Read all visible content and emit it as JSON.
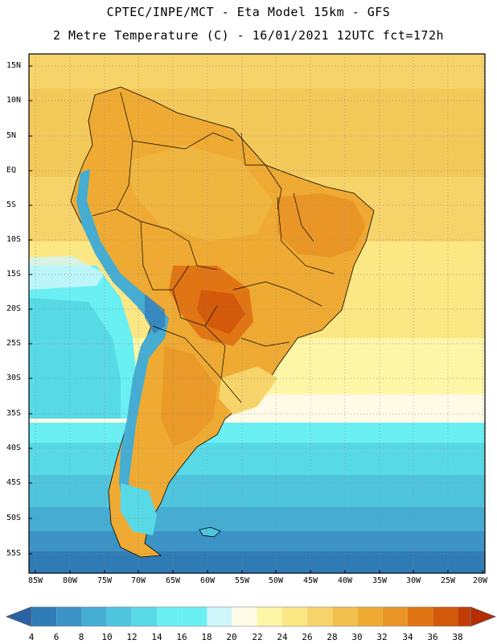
{
  "header": {
    "line1": "CPTEC/INPE/MCT -  Eta Model 15km - GFS",
    "line2": "2 Metre Temperature (C) - 16/01/2021 12UTC fct=172h"
  },
  "axes": {
    "lat_labels": [
      "15N",
      "10N",
      "5N",
      "EQ",
      "5S",
      "10S",
      "15S",
      "20S",
      "25S",
      "30S",
      "35S",
      "40S",
      "45S",
      "50S",
      "55S"
    ],
    "lon_labels": [
      "85W",
      "80W",
      "75W",
      "70W",
      "65W",
      "60W",
      "55W",
      "50W",
      "45W",
      "40W",
      "35W",
      "30W",
      "25W",
      "20W"
    ]
  },
  "colorbar": {
    "labels": [
      "4",
      "6",
      "8",
      "10",
      "12",
      "14",
      "16",
      "18",
      "20",
      "22",
      "24",
      "26",
      "28",
      "30",
      "32",
      "34",
      "36",
      "38"
    ],
    "colors": [
      "#2a62a6",
      "#2f7bb6",
      "#3b93c6",
      "#45acd2",
      "#4ec5dc",
      "#58d9e6",
      "#6aeff2",
      "#cff6fb",
      "#fffbe6",
      "#fdf6a6",
      "#fbe784",
      "#f7d46a",
      "#f1c04c",
      "#eeaa32",
      "#e99626",
      "#e17514",
      "#d25a0a",
      "#c23d05",
      "#b52e02"
    ],
    "under_color": "#2a62a6",
    "over_color": "#b52e02"
  },
  "map": {
    "ocean_colors": [
      "#2a62a6",
      "#2f7bb6",
      "#3b93c6",
      "#45acd2",
      "#4ec5dc",
      "#58d9e6",
      "#6aeff2",
      "#cff6fb",
      "#fffbe6",
      "#fdf6a6",
      "#fbe784",
      "#f7d46a"
    ],
    "land_colors": [
      "#f7d46a",
      "#f1c04c",
      "#eeaa32",
      "#e99626",
      "#e17514",
      "#d25a0a"
    ]
  }
}
